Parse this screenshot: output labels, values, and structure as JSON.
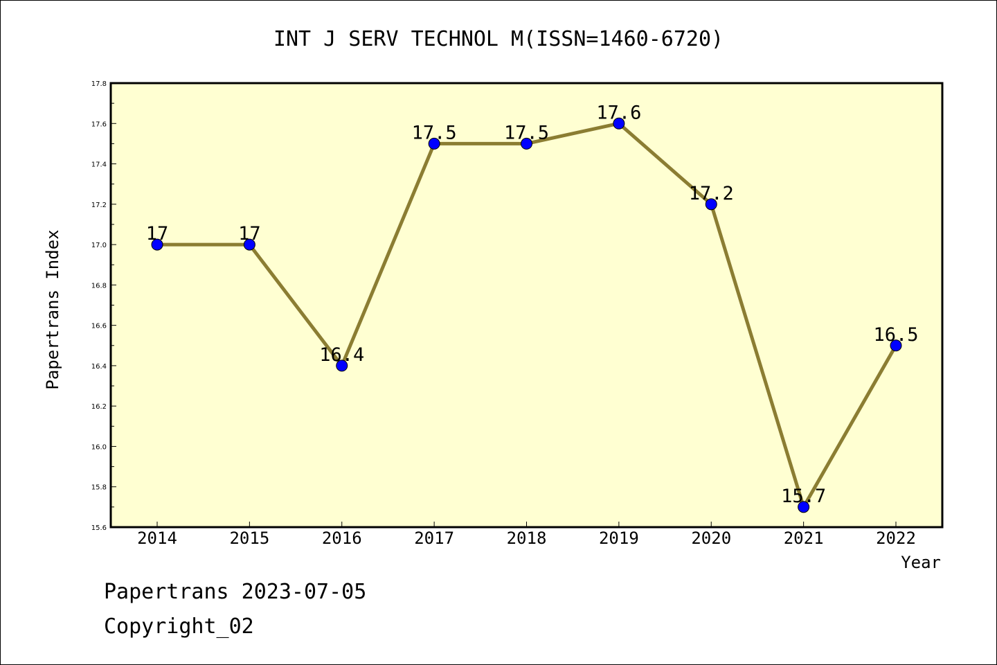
{
  "chart_data": {
    "type": "line",
    "title": "INT J SERV TECHNOL M(ISSN=1460-6720)",
    "xlabel": "Year",
    "ylabel": "Papertrans Index",
    "categories": [
      "2014",
      "2015",
      "2016",
      "2017",
      "2018",
      "2019",
      "2020",
      "2021",
      "2022"
    ],
    "values": [
      17,
      17,
      16.4,
      17.5,
      17.5,
      17.6,
      17.2,
      15.7,
      16.5
    ],
    "data_labels": [
      "17",
      "17",
      "16.4",
      "17.5",
      "17.5",
      "17.6",
      "17.2",
      "15.7",
      "16.5"
    ],
    "ylim": [
      15.6,
      17.8
    ],
    "yticks": [
      "15.6",
      "15.8",
      "16.0",
      "16.2",
      "16.4",
      "16.6",
      "16.8",
      "17.0",
      "17.2",
      "17.4",
      "17.6",
      "17.8"
    ],
    "grid": false,
    "colors": {
      "line": "#8B7D32",
      "marker": "#0000FF",
      "plot_background": "#FFFFD2"
    }
  },
  "footer": {
    "line1": "Papertrans 2023-07-05",
    "line2": "Copyright_02"
  }
}
